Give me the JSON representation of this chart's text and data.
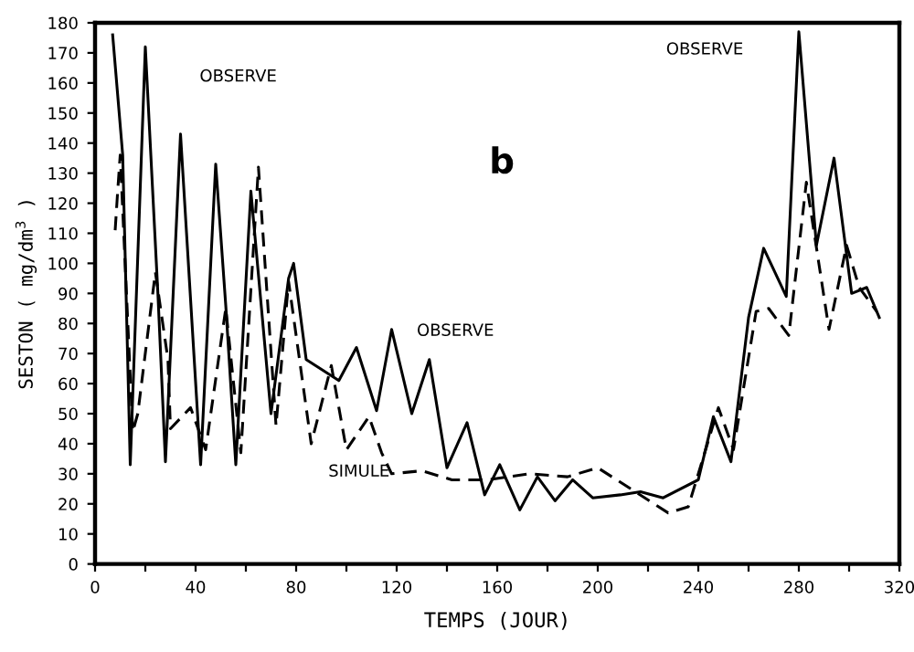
{
  "chart_data": {
    "type": "line",
    "xlabel": "TEMPS (JOUR)",
    "ylabel": "SESTON ( mg/dm$^{3}$ )",
    "xlim": [
      0,
      320
    ],
    "ylim": [
      0,
      180
    ],
    "xticks": [
      0,
      {
        "value": 20,
        "label": null
      },
      40,
      {
        "value": 60,
        "label": null
      },
      80,
      {
        "value": 100,
        "label": null
      },
      120,
      {
        "value": 140,
        "label": null
      },
      160,
      {
        "value": 180,
        "label": null
      },
      200,
      {
        "value": 220,
        "label": null
      },
      240,
      {
        "value": 260,
        "label": null
      },
      280,
      {
        "value": 300,
        "label": null
      },
      320
    ],
    "yticks": [
      0,
      10,
      20,
      30,
      40,
      50,
      60,
      70,
      80,
      90,
      100,
      110,
      120,
      130,
      140,
      150,
      160,
      170,
      180
    ],
    "grid": false,
    "legend": false,
    "marker": "none",
    "series": [
      {
        "color": "#000000",
        "line_style": "solid",
        "x": [
          7,
          11,
          14,
          20,
          25,
          28,
          34,
          42,
          48,
          52,
          56,
          62,
          70,
          77,
          79,
          84,
          97,
          104,
          112,
          118,
          126,
          133,
          140,
          148,
          155,
          161,
          169,
          176,
          183,
          190,
          198,
          209,
          217,
          226,
          240,
          246,
          253,
          260,
          266,
          275,
          280,
          287,
          294,
          301,
          307,
          312
        ],
        "values": [
          176,
          136,
          33,
          172,
          90,
          34,
          143,
          33,
          133,
          86,
          33,
          124,
          50,
          95,
          100,
          68,
          61,
          72,
          51,
          78,
          50,
          68,
          32,
          47,
          23,
          33,
          18,
          29,
          21,
          28,
          22,
          23,
          24,
          22,
          28,
          49,
          34,
          82,
          105,
          89,
          177,
          106,
          135,
          90,
          92,
          82
        ]
      },
      {
        "color": "#000000",
        "line_style": "dashed",
        "x": [
          8,
          9,
          10,
          15,
          17,
          24,
          29,
          30,
          38,
          44,
          52,
          58,
          65,
          72,
          77,
          86,
          94,
          100,
          109,
          114,
          118,
          130,
          142,
          156,
          173,
          188,
          200,
          215,
          228,
          236,
          248,
          254,
          263,
          268,
          276,
          283,
          292,
          299,
          304,
          311
        ],
        "values": [
          111,
          124,
          136,
          44,
          50,
          97,
          68,
          45,
          52,
          38,
          85,
          37,
          132,
          46,
          94,
          40,
          66,
          38,
          49,
          37,
          30,
          31,
          28,
          28,
          30,
          29,
          32,
          24,
          17,
          19,
          52,
          38,
          84,
          85,
          76,
          127,
          78,
          106,
          92,
          84
        ]
      }
    ],
    "annotations": [
      "OBSERVE",
      "OBSERVE",
      "OBSERVE",
      "SIMULE",
      "b"
    ]
  }
}
